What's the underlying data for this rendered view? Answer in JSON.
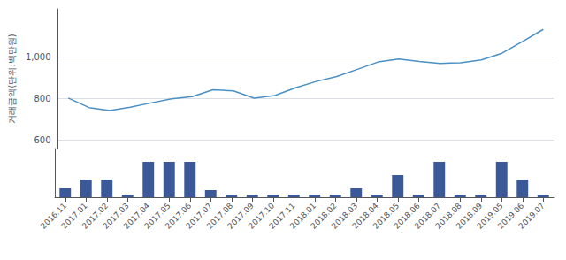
{
  "chart_data": [
    {
      "type": "line",
      "ylabel": "거래금액(단위:백만원)",
      "categories": [
        "2016.11",
        "2017.01",
        "2017.02",
        "2017.03",
        "2017.04",
        "2017.05",
        "2017.06",
        "2017.07",
        "2017.08",
        "2017.09",
        "2017.10",
        "2017.11",
        "2018.01",
        "2018.02",
        "2018.03",
        "2018.04",
        "2018.05",
        "2018.06",
        "2018.07",
        "2018.08",
        "2018.09",
        "2019.05",
        "2019.06",
        "2019.07"
      ],
      "values": [
        802.0,
        756.4,
        742.4,
        758.2,
        778.9,
        798.7,
        808.9,
        842.3,
        836.7,
        802.0,
        814.2,
        851.6,
        881.7,
        905.5,
        940.0,
        975.1,
        989.8,
        978.1,
        968.6,
        971.5,
        984.8,
        1017.1,
        1074.0,
        1131.4
      ],
      "color": "#4a90c4",
      "ylim": [
        560,
        1230
      ],
      "yticks": [
        600,
        800,
        {
          "value": 1000,
          "label": "1,000"
        }
      ],
      "grid": true,
      "tick_labels": "y"
    },
    {
      "type": "bar",
      "categories": [
        "2016.11",
        "2017.01",
        "2017.02",
        "2017.03",
        "2017.04",
        "2017.05",
        "2017.06",
        "2017.07",
        "2017.08",
        "2017.09",
        "2017.10",
        "2017.11",
        "2018.01",
        "2018.02",
        "2018.03",
        "2018.04",
        "2018.05",
        "2018.06",
        "2018.07",
        "2018.08",
        "2018.09",
        "2019.05",
        "2019.06",
        "2019.07"
      ],
      "values": [
        1,
        2,
        2,
        0.3,
        4,
        4,
        4,
        0.8,
        0.3,
        0.3,
        0.3,
        0.3,
        0.3,
        0.3,
        1,
        0.3,
        2.5,
        0.3,
        4,
        0.3,
        0.3,
        4,
        2,
        0.3
      ],
      "color": "#3b5998",
      "ylim": [
        0,
        5.5
      ],
      "grid": false,
      "tick_labels": "x"
    }
  ]
}
